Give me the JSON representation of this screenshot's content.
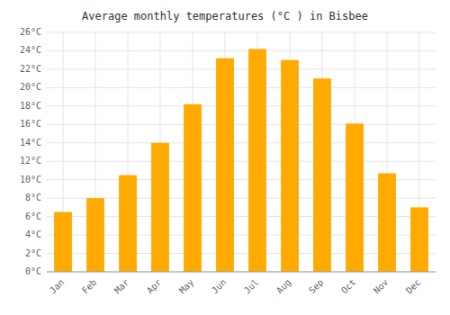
{
  "chart_data": {
    "type": "bar",
    "title": "Average monthly temperatures (°C ) in Bisbee",
    "categories": [
      "Jan",
      "Feb",
      "Mar",
      "Apr",
      "May",
      "Jun",
      "Jul",
      "Aug",
      "Sep",
      "Oct",
      "Nov",
      "Dec"
    ],
    "values": [
      6.5,
      8.0,
      10.5,
      14.0,
      18.2,
      23.2,
      24.2,
      23.0,
      21.0,
      16.1,
      10.7,
      7.0
    ],
    "color": "#FFAA00",
    "ylim": [
      0,
      26
    ],
    "yticks": [
      {
        "value": 0,
        "label": "0°C"
      },
      {
        "value": 2,
        "label": "2°C"
      },
      {
        "value": 4,
        "label": "4°C"
      },
      {
        "value": 6,
        "label": "6°C"
      },
      {
        "value": 8,
        "label": "8°C"
      },
      {
        "value": 10,
        "label": "10°C"
      },
      {
        "value": 12,
        "label": "12°C"
      },
      {
        "value": 14,
        "label": "14°C"
      },
      {
        "value": 16,
        "label": "16°C"
      },
      {
        "value": 18,
        "label": "18°C"
      },
      {
        "value": 20,
        "label": "20°C"
      },
      {
        "value": 22,
        "label": "22°C"
      },
      {
        "value": 24,
        "label": "24°C"
      },
      {
        "value": 26,
        "label": "26°C"
      }
    ],
    "grid": true
  }
}
